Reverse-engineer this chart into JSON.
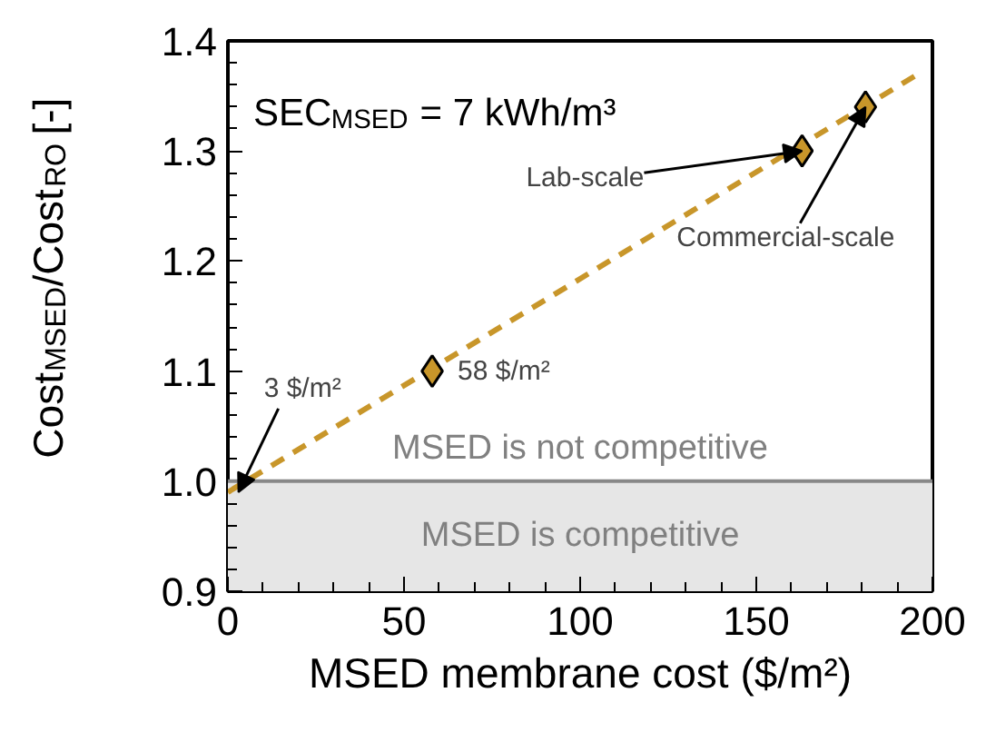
{
  "chart_data": {
    "type": "scatter",
    "xlabel": "MSED membrane cost ($/m²)",
    "ylabel": "Cost$_{MSED}$/Cost$_{RO}$ [-]",
    "xlim": [
      0,
      200
    ],
    "xticks": [
      0,
      50,
      100,
      150,
      200
    ],
    "ylim": [
      0.9,
      1.4
    ],
    "yticks": [
      0.9,
      {
        "value": 1.0,
        "label": "1.0"
      },
      1.1,
      1.2,
      1.3,
      1.4
    ],
    "series": [
      {
        "type": "line",
        "color": "#c8962a",
        "line_style": "dashed",
        "marker": "none",
        "x": [
          0,
          196
        ],
        "values": [
          0.99,
          1.37
        ]
      },
      {
        "color": "#c8962a",
        "marker": "diamond",
        "x": [
          58,
          163,
          181
        ],
        "values": [
          1.1,
          1.3,
          1.34
        ]
      }
    ],
    "bands": [
      {
        "axis": "y",
        "from": 0.9,
        "to": 1.0,
        "label": "MSED is competitive",
        "color": "#e6e6e6"
      }
    ],
    "ref_lines": [
      {
        "axis": "y",
        "value": 1.0,
        "label": "MSED is not competitive",
        "color": "#888888"
      }
    ],
    "annotations": [
      "SEC$_{MSED}$ = 7 kWh/m³",
      {
        "text": "3 $/m²",
        "x": 3,
        "y": 0.99
      },
      {
        "text": "58 $/m²",
        "x": 58,
        "y": 1.1
      },
      {
        "text": "Lab-scale",
        "x": 163,
        "y": 1.3
      },
      {
        "text": "Commercial-scale",
        "x": 181,
        "y": 1.34
      }
    ]
  }
}
